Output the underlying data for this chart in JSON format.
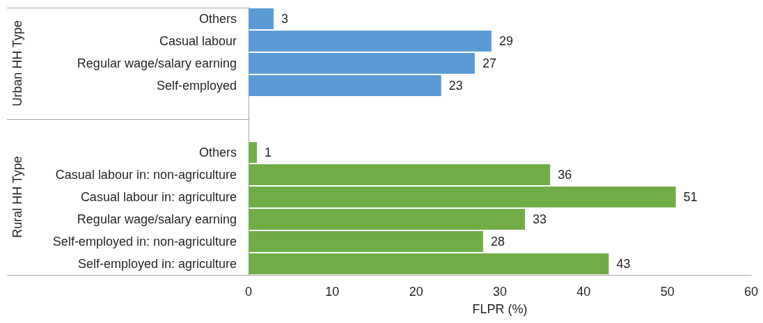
{
  "chart_data": {
    "type": "bar",
    "orientation": "horizontal",
    "xlabel": "FLPR (%)",
    "categories": [
      "Others",
      "Casual labour",
      "Regular wage/salary earning",
      "Self-employed",
      null,
      null,
      "Others",
      "Casual labour in: non-agriculture",
      "Casual labour in: agriculture",
      "Regular wage/salary earning",
      "Self-employed in: non-agriculture",
      "Self-employed in: agriculture"
    ],
    "series": [
      {
        "color": "#5b9bd5",
        "values": [
          3,
          29,
          27,
          23,
          null,
          null,
          null,
          null,
          null,
          null,
          null,
          null
        ]
      },
      {
        "color": "#70ad47",
        "values": [
          null,
          null,
          null,
          null,
          null,
          null,
          1,
          36,
          51,
          33,
          28,
          43
        ]
      }
    ],
    "annotations": [
      "Urban HH Type",
      "Rural HH Type"
    ],
    "xlim": [
      0,
      60
    ],
    "xticks": [
      0,
      10,
      20,
      30,
      40,
      50,
      60
    ],
    "data_labels": true
  }
}
